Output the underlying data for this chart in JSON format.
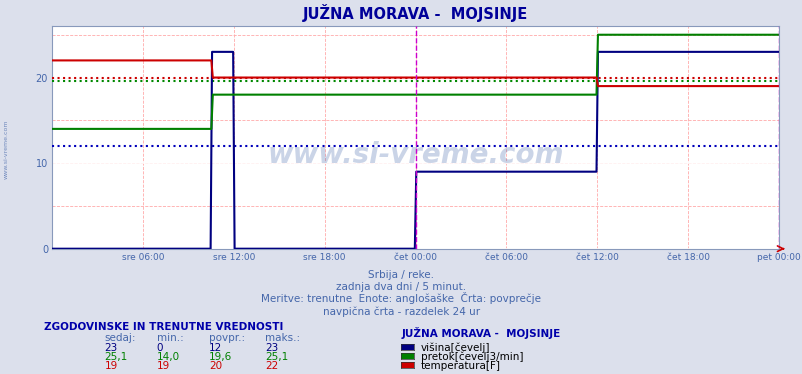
{
  "title": "JUŽNA MORAVA -  MOJSINJE",
  "subtitle1": "Srbija / reke.",
  "subtitle2": "zadnja dva dni / 5 minut.",
  "subtitle3": "Meritve: trenutne  Enote: anglošaške  Črta: povprečje",
  "subtitle4": "navpična črta - razdelek 24 ur",
  "xlabel_ticks": [
    "sre 06:00",
    "sre 12:00",
    "sre 18:00",
    "čet 00:00",
    "čet 06:00",
    "čet 12:00",
    "čet 18:00",
    "pet 00:00"
  ],
  "tick_positions": [
    0.125,
    0.25,
    0.375,
    0.5,
    0.625,
    0.75,
    0.875,
    1.0
  ],
  "ylim": [
    0,
    26
  ],
  "yticks": [
    0,
    10,
    20
  ],
  "bg_color": "#dce0ec",
  "plot_bg_color": "#ffffff",
  "avg_blue": 12,
  "avg_green": 19.6,
  "avg_red": 20,
  "blue_x": [
    0,
    0.249,
    0.251,
    0.499,
    0.501,
    0.749,
    0.751,
    1.0
  ],
  "blue_y": [
    0,
    0,
    0,
    0,
    9,
    9,
    23,
    23
  ],
  "green_x": [
    0,
    0.249,
    0.251,
    0.749,
    0.751,
    1.0
  ],
  "green_y": [
    14,
    14,
    18,
    18,
    25,
    25
  ],
  "red_x": [
    0,
    0.249,
    0.251,
    0.749,
    0.751,
    1.0
  ],
  "red_y": [
    22,
    22,
    20,
    20,
    19,
    19
  ],
  "blue_color": "#000080",
  "green_color": "#008000",
  "red_color": "#cc0000",
  "watermark": "www.si-vreme.com",
  "legend_title": "JUŽNA MORAVA -  MOJSINJE",
  "legend_labels": [
    "višina[čevelj]",
    "pretok[čevelj3/min]",
    "temperatura[F]"
  ],
  "legend_colors": [
    "#000080",
    "#008000",
    "#cc0000"
  ],
  "table_header": "ZGODOVINSKE IN TRENUTNE VREDNOSTI",
  "table_col_labels": [
    "sedaj:",
    "min.:",
    "povpr.:",
    "maks.:"
  ],
  "table_rows": [
    [
      "23",
      "0",
      "12",
      "23"
    ],
    [
      "25,1",
      "14,0",
      "19,6",
      "25,1"
    ],
    [
      "19",
      "19",
      "20",
      "22"
    ]
  ],
  "row_colors": [
    "#000080",
    "#008000",
    "#cc0000"
  ]
}
